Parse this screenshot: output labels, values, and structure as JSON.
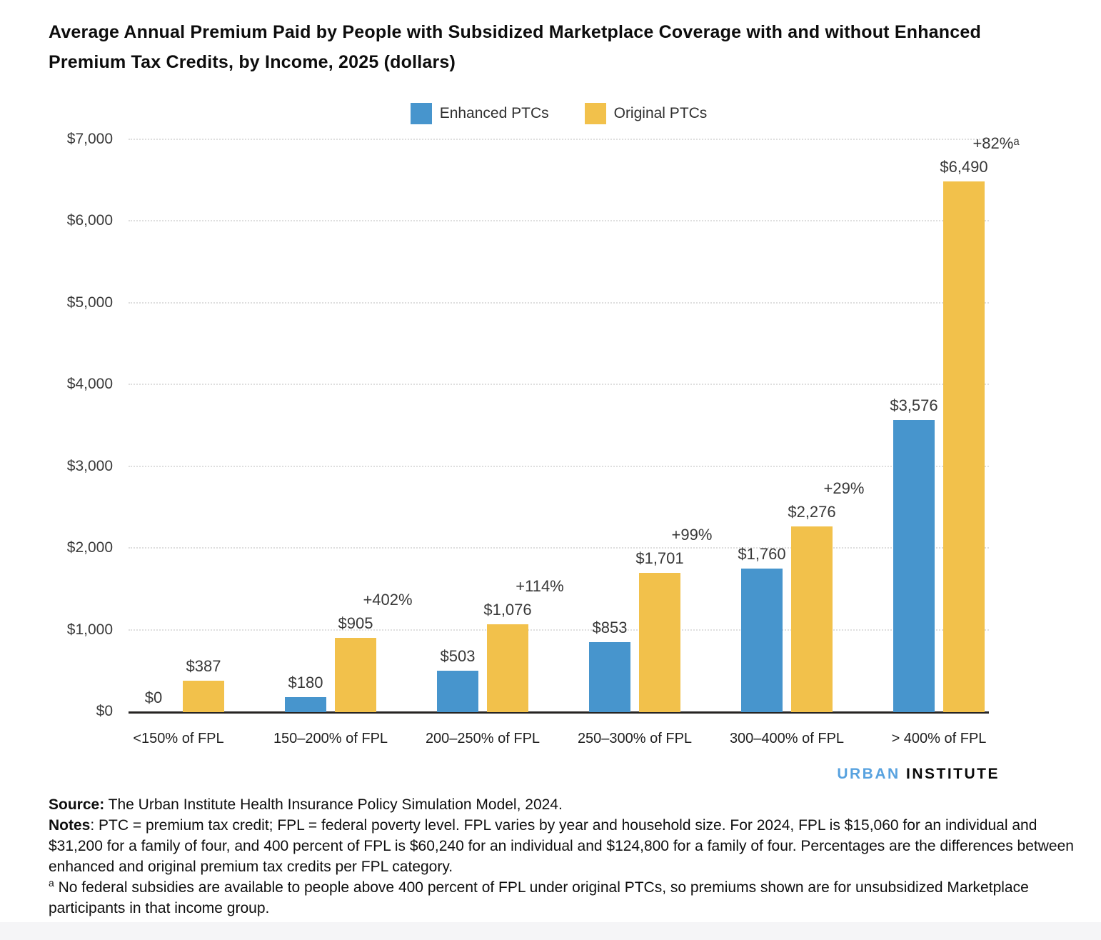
{
  "title": "Average Annual Premium Paid by People with Subsidized Marketplace Coverage with and without Enhanced Premium Tax Credits, by Income, 2025 (dollars)",
  "chart_data": {
    "type": "bar",
    "title": "Average Annual Premium Paid by People with Subsidized Marketplace Coverage with and without Enhanced Premium Tax Credits, by Income, 2025 (dollars)",
    "categories": [
      "<150% of FPL",
      "150–200% of FPL",
      "200–250% of FPL",
      "250–300% of FPL",
      "300–400% of FPL",
      "> 400% of FPL"
    ],
    "series": [
      {
        "name": "Enhanced PTCs",
        "color": "#4795CD",
        "values": [
          0,
          180,
          503,
          853,
          1760,
          3576
        ],
        "labels": [
          "$0",
          "$180",
          "$503",
          "$853",
          "$1,760",
          "$3,576"
        ]
      },
      {
        "name": "Original PTCs",
        "color": "#F2C14B",
        "values": [
          387,
          905,
          1076,
          1701,
          2276,
          6490
        ],
        "labels": [
          "$387",
          "$905",
          "$1,076",
          "$1,701",
          "$2,276",
          "$6,490"
        ]
      }
    ],
    "percent_labels": [
      "",
      "+402%",
      "+114%",
      "+99%",
      "+29%",
      "+82%ᵃ"
    ],
    "y_ticks": [
      "$0",
      "$1,000",
      "$2,000",
      "$3,000",
      "$4,000",
      "$5,000",
      "$6,000",
      "$7,000"
    ],
    "ylim": [
      0,
      7000
    ],
    "xlabel": "",
    "ylabel": "",
    "grid": "horizontal-dotted",
    "legend_position": "top-center"
  },
  "branding": {
    "word1": "URBAN",
    "word2": "INSTITUTE",
    "accent_color": "#58A2DF"
  },
  "footer": {
    "source_label": "Source:",
    "source_text": " The Urban Institute Health Insurance Policy Simulation Model, 2024.",
    "notes_label": "Notes",
    "notes_text": ": PTC = premium tax credit; FPL = federal poverty level. FPL varies by year and household size. For 2024, FPL is $15,060 for an individual and $31,200 for a family of four, and 400 percent of FPL is $60,240 for an individual and $124,800 for a family of four. Percentages are the differences between enhanced and original premium tax credits per FPL category.",
    "footnote_sup": "a",
    "footnote_text": " No federal subsidies are available to people above 400 percent of FPL under original PTCs, so premiums shown are for unsubsidized Marketplace participants in that income group."
  }
}
